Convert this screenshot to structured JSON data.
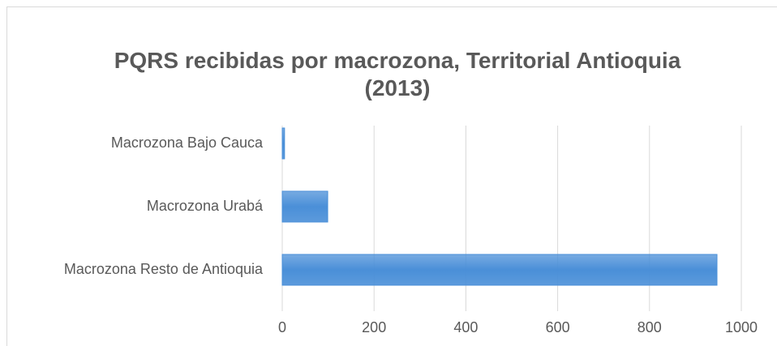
{
  "chart_data": {
    "type": "bar",
    "orientation": "horizontal",
    "title": "PQRS recibidas por macrozona, Territorial Antioquia (2013)",
    "categories": [
      "Macrozona Bajo Cauca",
      "Macrozona Urabá",
      "Macrozona Resto de Antioquia"
    ],
    "values": [
      5,
      99,
      947
    ],
    "color": "#4a8fd8",
    "xlim": [
      0,
      1000
    ],
    "xticks": [
      0,
      200,
      400,
      600,
      800,
      1000
    ],
    "grid": true
  }
}
